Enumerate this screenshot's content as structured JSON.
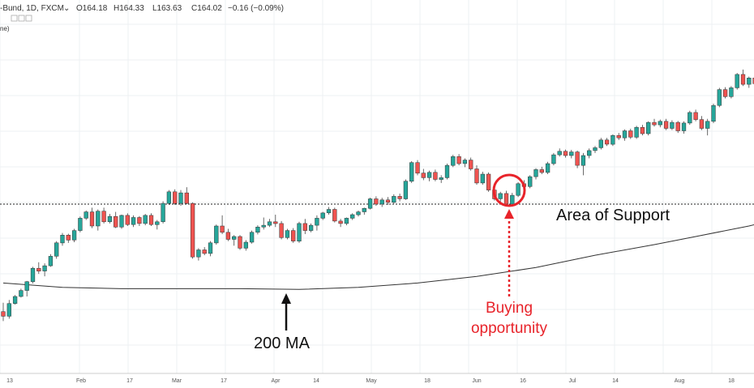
{
  "header": {
    "symbol": "-Bund, 1D, FXCM",
    "open": "O164.18",
    "high": "H164.33",
    "low": "L163.63",
    "close": "C164.02",
    "change": "−0.16 (−0.09%)",
    "study_label": "ne)"
  },
  "chart_data": {
    "type": "candlestick",
    "x_ticks": [
      "13",
      "Feb",
      "17",
      "Mar",
      "17",
      "Apr",
      "14",
      "May",
      "18",
      "Jun",
      "16",
      "Jul",
      "14",
      "Aug",
      "18"
    ],
    "support_level": 160.6,
    "candles": [
      [
        157.55,
        157.8,
        157.28,
        157.42
      ],
      [
        157.42,
        157.88,
        157.35,
        157.78
      ],
      [
        157.78,
        158.02,
        157.75,
        157.98
      ],
      [
        157.98,
        158.2,
        157.95,
        158.15
      ],
      [
        158.15,
        158.42,
        157.98,
        158.4
      ],
      [
        158.4,
        158.82,
        158.35,
        158.78
      ],
      [
        158.78,
        158.95,
        158.62,
        158.7
      ],
      [
        158.7,
        158.92,
        158.55,
        158.85
      ],
      [
        158.85,
        159.18,
        158.82,
        159.12
      ],
      [
        159.12,
        159.55,
        159.05,
        159.5
      ],
      [
        159.5,
        159.78,
        159.42,
        159.72
      ],
      [
        159.72,
        159.76,
        159.5,
        159.58
      ],
      [
        159.58,
        159.9,
        159.52,
        159.85
      ],
      [
        159.85,
        160.25,
        159.8,
        160.2
      ],
      [
        160.2,
        160.42,
        160.15,
        160.38
      ],
      [
        160.38,
        160.5,
        159.92,
        159.98
      ],
      [
        159.98,
        160.45,
        159.85,
        160.4
      ],
      [
        160.4,
        160.5,
        160.05,
        160.1
      ],
      [
        160.1,
        160.32,
        160.05,
        160.25
      ],
      [
        160.25,
        160.38,
        159.92,
        159.95
      ],
      [
        159.95,
        160.3,
        159.9,
        160.28
      ],
      [
        160.28,
        160.34,
        159.98,
        160.02
      ],
      [
        160.02,
        160.28,
        159.95,
        160.22
      ],
      [
        160.22,
        160.26,
        159.98,
        160.05
      ],
      [
        160.05,
        160.32,
        160.0,
        160.28
      ],
      [
        160.28,
        160.34,
        159.98,
        160.02
      ],
      [
        160.02,
        160.15,
        159.88,
        160.1
      ],
      [
        160.1,
        160.68,
        160.05,
        160.62
      ],
      [
        160.62,
        161.0,
        160.58,
        160.95
      ],
      [
        160.95,
        161.02,
        160.58,
        160.62
      ],
      [
        160.62,
        161.0,
        160.55,
        160.92
      ],
      [
        160.92,
        161.08,
        160.6,
        160.62
      ],
      [
        160.62,
        160.65,
        159.05,
        159.1
      ],
      [
        159.1,
        159.35,
        159.0,
        159.3
      ],
      [
        159.3,
        159.38,
        159.15,
        159.2
      ],
      [
        159.2,
        159.55,
        159.12,
        159.5
      ],
      [
        159.5,
        160.02,
        159.45,
        159.98
      ],
      [
        159.98,
        160.28,
        159.75,
        159.8
      ],
      [
        159.8,
        159.9,
        159.55,
        159.6
      ],
      [
        159.6,
        159.72,
        159.42,
        159.68
      ],
      [
        159.68,
        159.72,
        159.3,
        159.35
      ],
      [
        159.35,
        159.58,
        159.28,
        159.52
      ],
      [
        159.52,
        159.85,
        159.48,
        159.8
      ],
      [
        159.8,
        160.0,
        159.74,
        159.95
      ],
      [
        159.95,
        160.22,
        159.88,
        160.0
      ],
      [
        160.0,
        160.18,
        159.95,
        160.1
      ],
      [
        160.1,
        160.3,
        159.95,
        160.05
      ],
      [
        160.05,
        160.12,
        159.6,
        159.65
      ],
      [
        159.65,
        159.9,
        159.6,
        159.85
      ],
      [
        159.85,
        159.92,
        159.5,
        159.55
      ],
      [
        159.55,
        160.1,
        159.5,
        160.05
      ],
      [
        160.05,
        160.18,
        159.75,
        159.85
      ],
      [
        159.85,
        160.05,
        159.8,
        160.0
      ],
      [
        160.0,
        160.28,
        159.85,
        160.2
      ],
      [
        160.2,
        160.38,
        160.15,
        160.35
      ],
      [
        160.35,
        160.52,
        160.3,
        160.45
      ],
      [
        160.45,
        160.5,
        160.08,
        160.12
      ],
      [
        160.12,
        160.18,
        159.95,
        160.05
      ],
      [
        160.05,
        160.22,
        160.0,
        160.2
      ],
      [
        160.2,
        160.34,
        160.15,
        160.3
      ],
      [
        160.3,
        160.42,
        160.25,
        160.38
      ],
      [
        160.38,
        160.5,
        160.3,
        160.48
      ],
      [
        160.48,
        160.78,
        160.45,
        160.75
      ],
      [
        160.75,
        160.82,
        160.55,
        160.6
      ],
      [
        160.6,
        160.78,
        160.52,
        160.72
      ],
      [
        160.72,
        160.8,
        160.58,
        160.65
      ],
      [
        160.65,
        160.88,
        160.6,
        160.82
      ],
      [
        160.82,
        160.9,
        160.68,
        160.75
      ],
      [
        160.75,
        161.3,
        160.72,
        161.25
      ],
      [
        161.25,
        161.82,
        161.2,
        161.78
      ],
      [
        161.78,
        161.85,
        161.42,
        161.48
      ],
      [
        161.48,
        161.6,
        161.28,
        161.35
      ],
      [
        161.35,
        161.55,
        161.25,
        161.5
      ],
      [
        161.5,
        161.58,
        161.25,
        161.3
      ],
      [
        161.3,
        161.42,
        161.2,
        161.35
      ],
      [
        161.35,
        161.75,
        161.3,
        161.7
      ],
      [
        161.7,
        162.0,
        161.65,
        161.95
      ],
      [
        161.95,
        162.02,
        161.7,
        161.75
      ],
      [
        161.75,
        161.9,
        161.65,
        161.85
      ],
      [
        161.85,
        161.92,
        161.55,
        161.6
      ],
      [
        161.6,
        161.7,
        161.15,
        161.2
      ],
      [
        161.2,
        161.52,
        161.15,
        161.45
      ],
      [
        161.45,
        161.5,
        160.95,
        161.0
      ],
      [
        161.0,
        161.1,
        160.7,
        160.75
      ],
      [
        160.75,
        160.95,
        160.65,
        160.9
      ],
      [
        160.9,
        160.98,
        160.55,
        160.6
      ],
      [
        160.6,
        160.92,
        160.55,
        160.85
      ],
      [
        160.85,
        161.22,
        160.8,
        161.18
      ],
      [
        161.18,
        161.28,
        161.05,
        161.1
      ],
      [
        161.1,
        161.42,
        161.05,
        161.38
      ],
      [
        161.38,
        161.62,
        161.3,
        161.58
      ],
      [
        161.58,
        161.66,
        161.45,
        161.5
      ],
      [
        161.5,
        161.8,
        161.45,
        161.75
      ],
      [
        161.75,
        162.05,
        161.7,
        162.0
      ],
      [
        162.0,
        162.18,
        161.95,
        162.1
      ],
      [
        162.1,
        162.15,
        161.92,
        161.98
      ],
      [
        161.98,
        162.14,
        161.9,
        162.08
      ],
      [
        162.08,
        162.12,
        161.62,
        161.7
      ],
      [
        161.7,
        162.05,
        161.42,
        161.98
      ],
      [
        161.98,
        162.18,
        161.9,
        162.12
      ],
      [
        162.12,
        162.25,
        162.05,
        162.2
      ],
      [
        162.2,
        162.48,
        162.15,
        162.42
      ],
      [
        162.42,
        162.48,
        162.25,
        162.3
      ],
      [
        162.3,
        162.58,
        162.25,
        162.55
      ],
      [
        162.55,
        162.62,
        162.42,
        162.48
      ],
      [
        162.48,
        162.72,
        162.4,
        162.68
      ],
      [
        162.68,
        162.74,
        162.45,
        162.5
      ],
      [
        162.5,
        162.82,
        162.45,
        162.78
      ],
      [
        162.78,
        162.85,
        162.55,
        162.6
      ],
      [
        162.6,
        162.95,
        162.55,
        162.92
      ],
      [
        162.92,
        163.02,
        162.8,
        162.85
      ],
      [
        162.85,
        163.0,
        162.78,
        162.95
      ],
      [
        162.95,
        163.02,
        162.7,
        162.75
      ],
      [
        162.75,
        162.98,
        162.7,
        162.92
      ],
      [
        162.92,
        162.96,
        162.62,
        162.68
      ],
      [
        162.68,
        162.95,
        162.6,
        162.9
      ],
      [
        162.9,
        163.25,
        162.85,
        163.2
      ],
      [
        163.2,
        163.28,
        162.95,
        163.0
      ],
      [
        163.0,
        163.1,
        162.7,
        162.75
      ],
      [
        162.75,
        163.02,
        162.55,
        162.95
      ],
      [
        162.95,
        163.45,
        162.9,
        163.4
      ],
      [
        163.4,
        163.9,
        163.35,
        163.85
      ],
      [
        163.85,
        163.92,
        163.6,
        163.65
      ],
      [
        163.65,
        163.95,
        163.6,
        163.9
      ],
      [
        163.9,
        164.32,
        163.85,
        164.28
      ],
      [
        164.28,
        164.42,
        163.95,
        164.0
      ],
      [
        164.0,
        164.22,
        163.9,
        164.18
      ],
      [
        164.18,
        164.33,
        163.63,
        164.02
      ]
    ],
    "ma_line": [
      [
        0,
        158.36
      ],
      [
        10,
        158.24
      ],
      [
        20,
        158.2
      ],
      [
        30,
        158.2
      ],
      [
        40,
        158.2
      ],
      [
        50,
        158.18
      ],
      [
        60,
        158.24
      ],
      [
        70,
        158.36
      ],
      [
        80,
        158.55
      ],
      [
        90,
        158.8
      ],
      [
        100,
        159.15
      ],
      [
        110,
        159.45
      ],
      [
        117,
        159.68
      ],
      [
        126,
        159.98
      ],
      [
        127,
        160.02
      ]
    ]
  },
  "annotations": {
    "support_label": "Area of Support",
    "ma_label": "200 MA",
    "buying_line1": "Buying",
    "buying_line2": "opportunity"
  },
  "colors": {
    "up": "#26a69a",
    "down": "#ef5350",
    "ma": "#333333",
    "highlight": "#e8232a"
  }
}
